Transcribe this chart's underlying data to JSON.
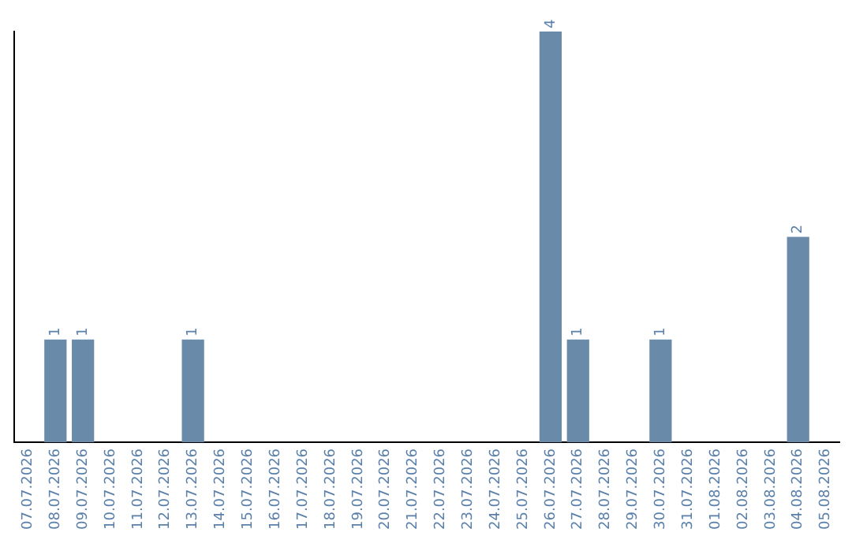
{
  "chart_data": {
    "type": "bar",
    "categories": [
      "07.07.2026",
      "08.07.2026",
      "09.07.2026",
      "10.07.2026",
      "11.07.2026",
      "12.07.2026",
      "13.07.2026",
      "14.07.2026",
      "15.07.2026",
      "16.07.2026",
      "17.07.2026",
      "18.07.2026",
      "19.07.2026",
      "20.07.2026",
      "21.07.2026",
      "22.07.2026",
      "23.07.2026",
      "24.07.2026",
      "25.07.2026",
      "26.07.2026",
      "27.07.2026",
      "28.07.2026",
      "29.07.2026",
      "30.07.2026",
      "31.07.2026",
      "01.08.2026",
      "02.08.2026",
      "03.08.2026",
      "04.08.2026",
      "05.08.2026"
    ],
    "values": [
      0,
      1,
      1,
      0,
      0,
      0,
      1,
      0,
      0,
      0,
      0,
      0,
      0,
      0,
      0,
      0,
      0,
      0,
      0,
      4,
      1,
      0,
      0,
      1,
      0,
      0,
      0,
      0,
      2,
      0
    ],
    "value_labels": [
      null,
      "1",
      "1",
      null,
      null,
      null,
      "1",
      null,
      null,
      null,
      null,
      null,
      null,
      null,
      null,
      null,
      null,
      null,
      null,
      "4",
      "1",
      null,
      null,
      "1",
      null,
      null,
      null,
      null,
      "2",
      null
    ],
    "color": "#6a8aaa",
    "ylim": [
      0,
      4
    ],
    "grid": false,
    "legend": false,
    "tick_labels": "x"
  }
}
